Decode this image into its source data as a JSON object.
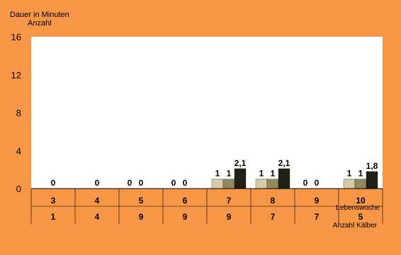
{
  "chart_data": {
    "type": "bar",
    "ylabel_line1": "Dauer in Minuten",
    "ylabel_line2": "Anzahl",
    "ylim": [
      0,
      16
    ],
    "yticks": [
      0,
      4,
      8,
      12,
      16
    ],
    "grid": false,
    "colors": {
      "background": "#f79646",
      "plot_area": "#ffffff",
      "series": [
        "#d6caa6",
        "#8e8a5e",
        "#1f2116"
      ],
      "gridline": "#000000"
    },
    "categories": [
      "3",
      "4",
      "5",
      "6",
      "7",
      "8",
      "9",
      "10"
    ],
    "row1_label": "Lebenswoche",
    "row2_label": "Anzahl Kälber",
    "row2_values": [
      "1",
      "4",
      "9",
      "9",
      "9",
      "7",
      "7",
      "5"
    ],
    "series": [
      {
        "values": [
          null,
          null,
          0,
          0,
          1,
          1,
          0,
          1
        ]
      },
      {
        "values": [
          0,
          0,
          0,
          0,
          1,
          1,
          0,
          1
        ]
      },
      {
        "values": [
          null,
          null,
          null,
          null,
          2.1,
          2.1,
          null,
          1.8
        ]
      }
    ],
    "data_labels": [
      [
        null,
        null,
        "0",
        "0",
        "1",
        "1",
        "0",
        "1"
      ],
      [
        "0",
        "0",
        "0",
        "0",
        "1",
        "1",
        "0",
        "1"
      ],
      [
        null,
        null,
        null,
        null,
        "2,1",
        "2,1",
        null,
        "1,8"
      ]
    ]
  }
}
